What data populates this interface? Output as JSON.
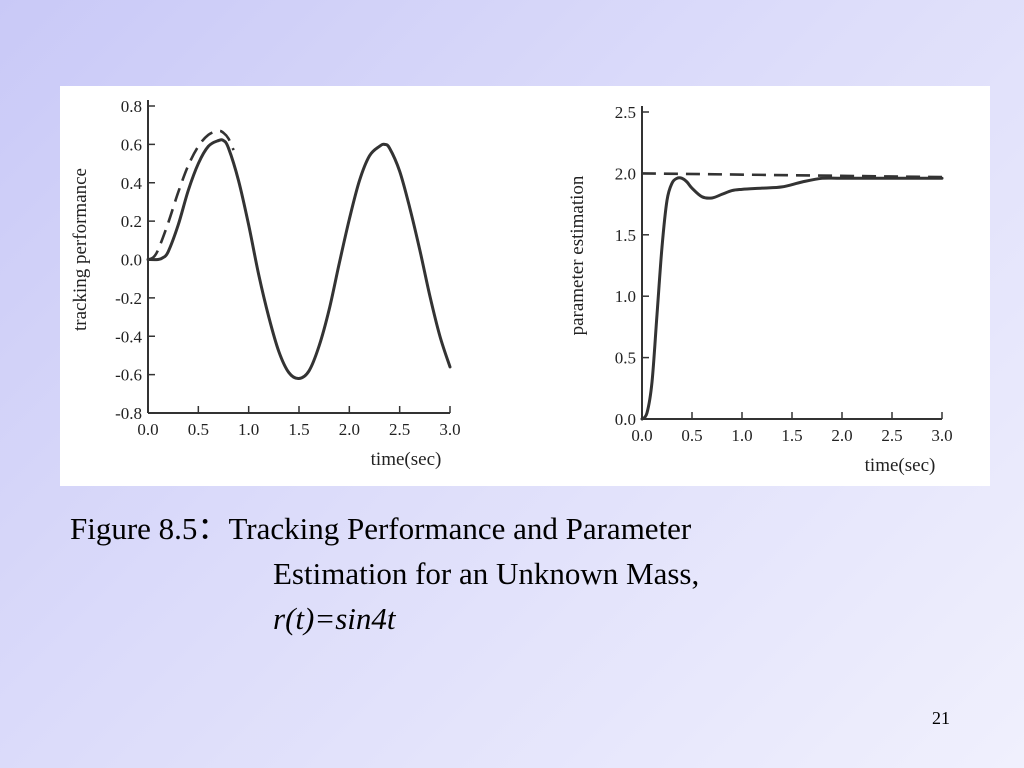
{
  "caption": {
    "prefix": "Figure 8.5：",
    "line1": "Tracking Performance and Parameter",
    "line2": "Estimation for an Unknown Mass,",
    "line3": "r(t)=sin4t"
  },
  "page_number": "21",
  "chart_data": [
    {
      "type": "line",
      "xlabel": "time(sec)",
      "ylabel": "tracking performance",
      "xlim": [
        0,
        3
      ],
      "ylim": [
        -0.8,
        0.8
      ],
      "x_ticks": [
        "0.0",
        "0.5",
        "1.0",
        "1.5",
        "2.0",
        "2.5",
        "3.0"
      ],
      "y_ticks": [
        "0.8",
        "0.6",
        "0.4",
        "0.2",
        "0.0",
        "-0.2",
        "-0.4",
        "-0.6",
        "-0.8"
      ],
      "grid": false,
      "series": [
        {
          "style": "solid",
          "color": "#333333",
          "x": [
            0,
            0.1,
            0.15,
            0.2,
            0.3,
            0.4,
            0.5,
            0.6,
            0.7,
            0.75,
            0.8,
            0.9,
            1.0,
            1.1,
            1.2,
            1.3,
            1.4,
            1.5,
            1.6,
            1.7,
            1.8,
            1.9,
            2.0,
            2.1,
            2.2,
            2.3,
            2.35,
            2.4,
            2.5,
            2.6,
            2.7,
            2.8,
            2.9,
            3.0
          ],
          "y": [
            0.0,
            0.0,
            0.01,
            0.04,
            0.18,
            0.36,
            0.5,
            0.59,
            0.62,
            0.62,
            0.58,
            0.41,
            0.18,
            -0.08,
            -0.3,
            -0.48,
            -0.59,
            -0.62,
            -0.58,
            -0.45,
            -0.26,
            -0.02,
            0.21,
            0.41,
            0.54,
            0.59,
            0.6,
            0.58,
            0.46,
            0.27,
            0.05,
            -0.19,
            -0.4,
            -0.56
          ]
        },
        {
          "style": "dashed",
          "color": "#333333",
          "x": [
            0,
            0.05,
            0.1,
            0.2,
            0.3,
            0.4,
            0.5,
            0.6,
            0.7,
            0.75,
            0.8,
            0.85
          ],
          "y": [
            0.0,
            0.01,
            0.05,
            0.19,
            0.35,
            0.49,
            0.59,
            0.65,
            0.67,
            0.66,
            0.63,
            0.57
          ]
        }
      ]
    },
    {
      "type": "line",
      "xlabel": "time(sec)",
      "ylabel": "parameter estimation",
      "xlim": [
        0,
        3
      ],
      "ylim": [
        0,
        2.5
      ],
      "x_ticks": [
        "0.0",
        "0.5",
        "1.0",
        "1.5",
        "2.0",
        "2.5",
        "3.0"
      ],
      "y_ticks": [
        "2.5",
        "2.0",
        "1.5",
        "1.0",
        "0.5",
        "0.0"
      ],
      "grid": false,
      "series": [
        {
          "style": "solid",
          "color": "#333333",
          "x": [
            0,
            0.05,
            0.1,
            0.15,
            0.2,
            0.25,
            0.3,
            0.35,
            0.4,
            0.45,
            0.5,
            0.6,
            0.7,
            0.8,
            0.9,
            1.0,
            1.2,
            1.4,
            1.6,
            1.8,
            2.0,
            2.5,
            3.0
          ],
          "y": [
            0.0,
            0.05,
            0.3,
            0.85,
            1.4,
            1.78,
            1.92,
            1.96,
            1.96,
            1.93,
            1.88,
            1.81,
            1.8,
            1.83,
            1.86,
            1.87,
            1.88,
            1.89,
            1.93,
            1.96,
            1.96,
            1.96,
            1.96
          ]
        },
        {
          "style": "dashed",
          "color": "#333333",
          "x": [
            0,
            3
          ],
          "y": [
            2.0,
            1.97
          ]
        }
      ]
    }
  ]
}
